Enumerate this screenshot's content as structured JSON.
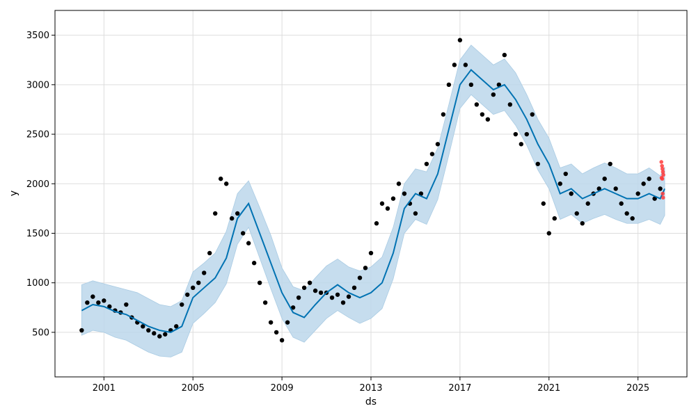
{
  "chart_data": {
    "type": "scatter",
    "title": "",
    "xlabel": "ds",
    "ylabel": "y",
    "xlim": [
      1998.8,
      2027.2
    ],
    "ylim": [
      50,
      3750
    ],
    "grid": true,
    "x_ticks": [
      2001,
      2005,
      2009,
      2013,
      2017,
      2021,
      2025
    ],
    "x_tick_labels": [
      "2001",
      "2005",
      "2009",
      "2013",
      "2017",
      "2021",
      "2025"
    ],
    "y_ticks": [
      500,
      1000,
      1500,
      2000,
      2500,
      3000,
      3500
    ],
    "y_tick_labels": [
      "500",
      "1000",
      "1500",
      "2000",
      "2500",
      "3000",
      "3500"
    ],
    "colors": {
      "observed": "#000000",
      "forecast_line": "#0072B2",
      "uncertainty_band": "#bcd7eb",
      "highlight_points": "#ff3b3b",
      "grid": "#dddddd"
    },
    "series": [
      {
        "role": "observed",
        "type": "scatter",
        "x": [
          2000.0,
          2000.25,
          2000.5,
          2000.75,
          2001.0,
          2001.25,
          2001.5,
          2001.75,
          2002.0,
          2002.25,
          2002.5,
          2002.75,
          2003.0,
          2003.25,
          2003.5,
          2003.75,
          2004.0,
          2004.25,
          2004.5,
          2004.75,
          2005.0,
          2005.25,
          2005.5,
          2005.75,
          2006.0,
          2006.25,
          2006.5,
          2006.75,
          2007.0,
          2007.25,
          2007.5,
          2007.75,
          2008.0,
          2008.25,
          2008.5,
          2008.75,
          2009.0,
          2009.25,
          2009.5,
          2009.75,
          2010.0,
          2010.25,
          2010.5,
          2010.75,
          2011.0,
          2011.25,
          2011.5,
          2011.75,
          2012.0,
          2012.25,
          2012.5,
          2012.75,
          2013.0,
          2013.25,
          2013.5,
          2013.75,
          2014.0,
          2014.25,
          2014.5,
          2014.75,
          2015.0,
          2015.25,
          2015.5,
          2015.75,
          2016.0,
          2016.25,
          2016.5,
          2016.75,
          2017.0,
          2017.25,
          2017.5,
          2017.75,
          2018.0,
          2018.25,
          2018.5,
          2018.75,
          2019.0,
          2019.25,
          2019.5,
          2019.75,
          2020.0,
          2020.25,
          2020.5,
          2020.75,
          2021.0,
          2021.25,
          2021.5,
          2021.75,
          2022.0,
          2022.25,
          2022.5,
          2022.75,
          2023.0,
          2023.25,
          2023.5,
          2023.75,
          2024.0,
          2024.25,
          2024.5,
          2024.75,
          2025.0,
          2025.25,
          2025.5,
          2025.75,
          2026.0
        ],
        "y": [
          520,
          800,
          860,
          800,
          820,
          760,
          720,
          700,
          780,
          650,
          600,
          560,
          520,
          490,
          460,
          480,
          520,
          560,
          780,
          880,
          950,
          1000,
          1100,
          1300,
          1700,
          2050,
          2000,
          1650,
          1700,
          1500,
          1400,
          1200,
          1000,
          800,
          600,
          500,
          420,
          600,
          750,
          850,
          950,
          1000,
          920,
          900,
          900,
          850,
          880,
          800,
          860,
          950,
          1050,
          1150,
          1300,
          1600,
          1800,
          1750,
          1850,
          2000,
          1900,
          1800,
          1700,
          1900,
          2200,
          2300,
          2400,
          2700,
          3000,
          3200,
          3450,
          3200,
          3000,
          2800,
          2700,
          2650,
          2900,
          3000,
          3300,
          2800,
          2500,
          2400,
          2500,
          2700,
          2200,
          1800,
          1500,
          1650,
          2000,
          2100,
          1900,
          1700,
          1600,
          1800,
          1900,
          1950,
          2050,
          2200,
          1950,
          1800,
          1700,
          1650,
          1900,
          2000,
          2050,
          1850,
          1950
        ]
      },
      {
        "role": "forecast",
        "type": "line",
        "x": [
          2000.0,
          2000.5,
          2001.0,
          2001.5,
          2002.0,
          2002.5,
          2003.0,
          2003.5,
          2004.0,
          2004.5,
          2005.0,
          2005.5,
          2006.0,
          2006.5,
          2007.0,
          2007.5,
          2008.0,
          2008.5,
          2009.0,
          2009.5,
          2010.0,
          2010.5,
          2011.0,
          2011.5,
          2012.0,
          2012.5,
          2013.0,
          2013.5,
          2014.0,
          2014.5,
          2015.0,
          2015.5,
          2016.0,
          2016.5,
          2017.0,
          2017.5,
          2018.0,
          2018.5,
          2019.0,
          2019.5,
          2020.0,
          2020.5,
          2021.0,
          2021.5,
          2022.0,
          2022.5,
          2023.0,
          2023.5,
          2024.0,
          2024.5,
          2025.0,
          2025.5,
          2026.0,
          2026.2
        ],
        "y": [
          720,
          780,
          760,
          710,
          680,
          620,
          560,
          520,
          500,
          560,
          850,
          950,
          1050,
          1250,
          1650,
          1800,
          1500,
          1200,
          900,
          700,
          650,
          780,
          900,
          980,
          900,
          850,
          900,
          1000,
          1300,
          1750,
          1900,
          1850,
          2100,
          2550,
          3000,
          3150,
          3050,
          2950,
          3000,
          2850,
          2650,
          2400,
          2200,
          1900,
          1950,
          1850,
          1900,
          1950,
          1900,
          1850,
          1850,
          1900,
          1850,
          1950
        ]
      },
      {
        "role": "uncertainty_upper",
        "type": "area",
        "x": [
          2000.0,
          2000.5,
          2001.0,
          2001.5,
          2002.0,
          2002.5,
          2003.0,
          2003.5,
          2004.0,
          2004.5,
          2005.0,
          2005.5,
          2006.0,
          2006.5,
          2007.0,
          2007.5,
          2008.0,
          2008.5,
          2009.0,
          2009.5,
          2010.0,
          2010.5,
          2011.0,
          2011.5,
          2012.0,
          2012.5,
          2013.0,
          2013.5,
          2014.0,
          2014.5,
          2015.0,
          2015.5,
          2016.0,
          2016.5,
          2017.0,
          2017.5,
          2018.0,
          2018.5,
          2019.0,
          2019.5,
          2020.0,
          2020.5,
          2021.0,
          2021.5,
          2022.0,
          2022.5,
          2023.0,
          2023.5,
          2024.0,
          2024.5,
          2025.0,
          2025.5,
          2026.0,
          2026.2
        ],
        "y": [
          980,
          1020,
          990,
          960,
          930,
          900,
          840,
          780,
          760,
          820,
          1110,
          1200,
          1300,
          1520,
          1900,
          2030,
          1760,
          1480,
          1150,
          960,
          920,
          1050,
          1170,
          1240,
          1160,
          1120,
          1160,
          1260,
          1560,
          2000,
          2150,
          2120,
          2360,
          2800,
          3250,
          3400,
          3300,
          3200,
          3260,
          3120,
          2900,
          2650,
          2460,
          2160,
          2200,
          2100,
          2160,
          2210,
          2160,
          2100,
          2100,
          2160,
          2080,
          2170
        ]
      },
      {
        "role": "uncertainty_lower",
        "type": "area",
        "x": [
          2000.0,
          2000.5,
          2001.0,
          2001.5,
          2002.0,
          2002.5,
          2003.0,
          2003.5,
          2004.0,
          2004.5,
          2005.0,
          2005.5,
          2006.0,
          2006.5,
          2007.0,
          2007.5,
          2008.0,
          2008.5,
          2009.0,
          2009.5,
          2010.0,
          2010.5,
          2011.0,
          2011.5,
          2012.0,
          2012.5,
          2013.0,
          2013.5,
          2014.0,
          2014.5,
          2015.0,
          2015.5,
          2016.0,
          2016.5,
          2017.0,
          2017.5,
          2018.0,
          2018.5,
          2019.0,
          2019.5,
          2020.0,
          2020.5,
          2021.0,
          2021.5,
          2022.0,
          2022.5,
          2023.0,
          2023.5,
          2024.0,
          2024.5,
          2025.0,
          2025.5,
          2026.0,
          2026.2
        ],
        "y": [
          470,
          520,
          500,
          450,
          420,
          360,
          300,
          260,
          250,
          300,
          590,
          690,
          800,
          990,
          1390,
          1560,
          1250,
          940,
          640,
          450,
          400,
          520,
          640,
          720,
          650,
          590,
          640,
          740,
          1040,
          1500,
          1640,
          1590,
          1840,
          2290,
          2760,
          2900,
          2800,
          2700,
          2740,
          2590,
          2390,
          2140,
          1950,
          1640,
          1690,
          1600,
          1650,
          1690,
          1640,
          1600,
          1600,
          1640,
          1590,
          1680
        ]
      },
      {
        "role": "highlight",
        "type": "scatter",
        "x": [
          2026.05,
          2026.08,
          2026.1,
          2026.12,
          2026.14,
          2026.06,
          2026.09,
          2026.11,
          2026.13
        ],
        "y": [
          2220,
          2180,
          2150,
          2120,
          2090,
          2060,
          2050,
          1900,
          1860
        ]
      }
    ]
  }
}
